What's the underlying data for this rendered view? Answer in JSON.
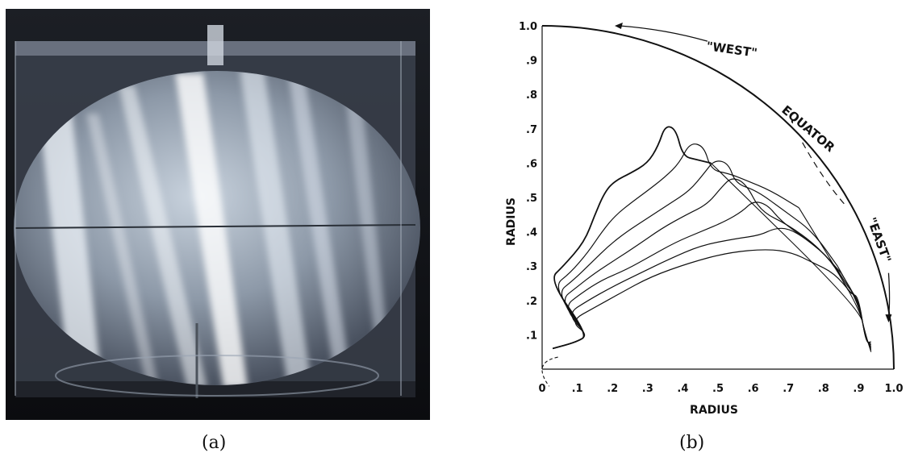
{
  "figure": {
    "panels": [
      {
        "id": "a",
        "caption": "(a)",
        "kind": "photograph",
        "subject": "rotating fluid sphere with oblique light streaks"
      },
      {
        "id": "b",
        "caption": "(b)",
        "kind": "line-drawing"
      }
    ]
  },
  "chart_data": {
    "type": "line",
    "xlabel": "RADIUS",
    "ylabel": "RADIUS",
    "xlim": [
      0,
      1.0
    ],
    "ylim": [
      0,
      1.0
    ],
    "x_ticks": [
      "0",
      ".1",
      ".2",
      ".3",
      ".4",
      ".5",
      ".6",
      ".7",
      ".8",
      ".9",
      "1.0"
    ],
    "y_ticks": [
      ".1",
      ".2",
      ".3",
      ".4",
      ".5",
      ".6",
      ".7",
      ".8",
      ".9",
      "1.0"
    ],
    "annotations": [
      "\"WEST\"",
      "EQUATOR",
      "\"EAST\""
    ],
    "series": [
      {
        "values": [
          [
            0.02,
            0.26
          ],
          [
            0.06,
            0.3
          ],
          [
            0.12,
            0.37
          ],
          [
            0.15,
            0.45
          ],
          [
            0.18,
            0.52
          ],
          [
            0.21,
            0.55
          ],
          [
            0.25,
            0.57
          ],
          [
            0.3,
            0.6
          ],
          [
            0.33,
            0.65
          ],
          [
            0.35,
            0.71
          ],
          [
            0.38,
            0.7
          ],
          [
            0.4,
            0.62
          ],
          [
            0.44,
            0.61
          ],
          [
            0.48,
            0.6
          ]
        ]
      },
      {
        "values": [
          [
            0.03,
            0.24
          ],
          [
            0.08,
            0.28
          ],
          [
            0.13,
            0.34
          ],
          [
            0.17,
            0.4
          ],
          [
            0.21,
            0.45
          ],
          [
            0.26,
            0.49
          ],
          [
            0.3,
            0.52
          ],
          [
            0.35,
            0.56
          ],
          [
            0.39,
            0.6
          ],
          [
            0.42,
            0.66
          ],
          [
            0.46,
            0.65
          ],
          [
            0.48,
            0.58
          ],
          [
            0.53,
            0.57
          ],
          [
            0.58,
            0.55
          ],
          [
            0.65,
            0.52
          ],
          [
            0.73,
            0.47
          ]
        ]
      },
      {
        "values": [
          [
            0.04,
            0.22
          ],
          [
            0.09,
            0.26
          ],
          [
            0.14,
            0.31
          ],
          [
            0.19,
            0.36
          ],
          [
            0.24,
            0.4
          ],
          [
            0.3,
            0.44
          ],
          [
            0.36,
            0.48
          ],
          [
            0.42,
            0.52
          ],
          [
            0.46,
            0.57
          ],
          [
            0.49,
            0.61
          ],
          [
            0.53,
            0.6
          ],
          [
            0.55,
            0.54
          ],
          [
            0.61,
            0.52
          ],
          [
            0.69,
            0.46
          ],
          [
            0.77,
            0.4
          ],
          [
            0.84,
            0.3
          ]
        ]
      },
      {
        "values": [
          [
            0.05,
            0.2
          ],
          [
            0.1,
            0.24
          ],
          [
            0.15,
            0.28
          ],
          [
            0.21,
            0.32
          ],
          [
            0.27,
            0.36
          ],
          [
            0.34,
            0.41
          ],
          [
            0.41,
            0.45
          ],
          [
            0.47,
            0.48
          ],
          [
            0.51,
            0.53
          ],
          [
            0.54,
            0.56
          ],
          [
            0.58,
            0.54
          ],
          [
            0.62,
            0.46
          ],
          [
            0.7,
            0.42
          ],
          [
            0.78,
            0.36
          ],
          [
            0.85,
            0.28
          ]
        ]
      },
      {
        "values": [
          [
            0.06,
            0.18
          ],
          [
            0.11,
            0.22
          ],
          [
            0.17,
            0.26
          ],
          [
            0.24,
            0.29
          ],
          [
            0.31,
            0.33
          ],
          [
            0.38,
            0.37
          ],
          [
            0.45,
            0.4
          ],
          [
            0.52,
            0.43
          ],
          [
            0.57,
            0.46
          ],
          [
            0.6,
            0.49
          ],
          [
            0.64,
            0.48
          ],
          [
            0.68,
            0.43
          ],
          [
            0.75,
            0.38
          ],
          [
            0.82,
            0.32
          ],
          [
            0.87,
            0.24
          ]
        ]
      },
      {
        "values": [
          [
            0.07,
            0.16
          ],
          [
            0.13,
            0.2
          ],
          [
            0.2,
            0.24
          ],
          [
            0.28,
            0.28
          ],
          [
            0.36,
            0.32
          ],
          [
            0.45,
            0.36
          ],
          [
            0.55,
            0.38
          ],
          [
            0.62,
            0.39
          ],
          [
            0.66,
            0.41
          ],
          [
            0.7,
            0.41
          ],
          [
            0.75,
            0.38
          ],
          [
            0.82,
            0.32
          ],
          [
            0.87,
            0.23
          ]
        ]
      },
      {
        "values": [
          [
            0.08,
            0.14
          ],
          [
            0.15,
            0.18
          ],
          [
            0.22,
            0.22
          ],
          [
            0.31,
            0.27
          ],
          [
            0.42,
            0.31
          ],
          [
            0.53,
            0.34
          ],
          [
            0.64,
            0.35
          ],
          [
            0.71,
            0.34
          ],
          [
            0.77,
            0.31
          ],
          [
            0.83,
            0.28
          ],
          [
            0.88,
            0.22
          ]
        ]
      }
    ]
  }
}
